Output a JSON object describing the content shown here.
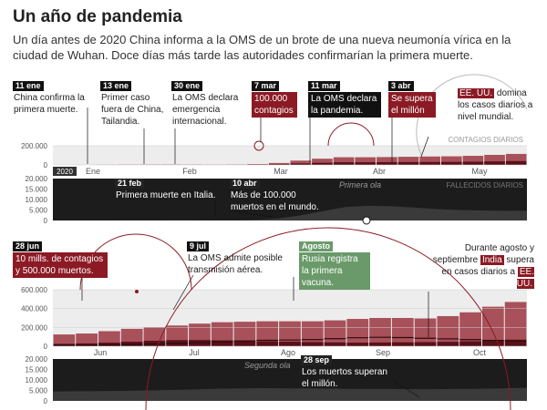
{
  "header": {
    "title": "Un año de pandemia",
    "subtitle": "Un día antes de 2020 China informa a la OMS de un brote de una nueva neumonía vírica en la ciudad de Wuhan. Doce días más tarde las autoridades confirmarían la primera muerte."
  },
  "colors": {
    "cases": "#a8515a",
    "cases_dark": "#5a1018",
    "deaths_bg": "#1c1c1c",
    "deaths_fill": "#3a3a3a",
    "accent": "#8b1a24",
    "green": "#6a9a6a"
  },
  "chart_data": [
    {
      "type": "bar",
      "title": "CONTAGIOS DIARIOS",
      "year_label": "2020",
      "months": [
        "Ene",
        "Feb",
        "Mar",
        "Abr",
        "May"
      ],
      "yticks": [
        "200.000",
        "0"
      ],
      "ylim": [
        0,
        200000
      ],
      "x_weeks": [
        "01-05",
        "01-12",
        "01-19",
        "01-26",
        "02-02",
        "02-09",
        "02-16",
        "02-23",
        "03-01",
        "03-08",
        "03-15",
        "03-22",
        "03-29",
        "04-05",
        "04-12",
        "04-19",
        "04-26",
        "05-03",
        "05-10",
        "05-17",
        "05-24",
        "05-31"
      ],
      "values": [
        0,
        100,
        1200,
        2500,
        3000,
        3500,
        2500,
        1500,
        3000,
        8000,
        20000,
        45000,
        65000,
        80000,
        80000,
        82000,
        85000,
        88000,
        90000,
        95000,
        105000,
        115000
      ]
    },
    {
      "type": "area",
      "title": "FALLECIDOS DIARIOS",
      "band_label": "Primera ola",
      "yticks": [
        "20.000",
        "15.000",
        "10.000",
        "5.000",
        "0"
      ],
      "ylim": [
        0,
        20000
      ],
      "x_weeks": [
        "01-05",
        "01-12",
        "01-19",
        "01-26",
        "02-02",
        "02-09",
        "02-16",
        "02-23",
        "03-01",
        "03-08",
        "03-15",
        "03-22",
        "03-29",
        "04-05",
        "04-12",
        "04-19",
        "04-26",
        "05-03",
        "05-10",
        "05-17",
        "05-24",
        "05-31"
      ],
      "values": [
        0,
        0,
        10,
        30,
        60,
        100,
        120,
        80,
        70,
        300,
        1000,
        2500,
        4500,
        6500,
        7000,
        6800,
        6200,
        5500,
        5000,
        4800,
        4600,
        4700
      ]
    },
    {
      "type": "bar",
      "title": "",
      "months": [
        "Jun",
        "Jul",
        "Ago",
        "Sep",
        "Oct"
      ],
      "yticks": [
        "600.000",
        "400.000",
        "200.000",
        "0"
      ],
      "ylim": [
        0,
        600000
      ],
      "x_weeks": [
        "06-07",
        "06-14",
        "06-21",
        "06-28",
        "07-05",
        "07-12",
        "07-19",
        "07-26",
        "08-02",
        "08-09",
        "08-16",
        "08-23",
        "08-30",
        "09-06",
        "09-13",
        "09-20",
        "09-27",
        "10-04",
        "10-11",
        "10-18",
        "10-25"
      ],
      "values": [
        125000,
        135000,
        160000,
        185000,
        200000,
        220000,
        240000,
        255000,
        260000,
        265000,
        265000,
        265000,
        275000,
        290000,
        300000,
        300000,
        295000,
        320000,
        360000,
        420000,
        470000
      ],
      "series": [
        {
          "name": "",
          "values": [
            125000,
            135000,
            160000,
            185000,
            200000,
            220000,
            240000,
            255000,
            260000,
            265000,
            265000,
            265000,
            275000,
            290000,
            300000,
            300000,
            295000,
            320000,
            360000,
            420000,
            470000
          ]
        },
        {
          "name": "EE. UU.",
          "values": [
            25000,
            30000,
            38000,
            48000,
            58000,
            65000,
            66000,
            62000,
            55000,
            52000,
            48000,
            44000,
            41000,
            38000,
            40000,
            42000,
            44000,
            46000,
            52000,
            60000,
            70000
          ]
        },
        {
          "name": "India",
          "values": [
            10000,
            11000,
            14000,
            19000,
            24000,
            30000,
            38000,
            48000,
            56000,
            63000,
            66000,
            70000,
            80000,
            90000,
            95000,
            92000,
            85000,
            78000,
            70000,
            62000,
            55000
          ]
        }
      ]
    },
    {
      "type": "area",
      "title": "",
      "band_label": "Segunda ola",
      "yticks": [
        "20.000",
        "15.000",
        "10.000",
        "5.000",
        "0"
      ],
      "ylim": [
        0,
        20000
      ],
      "x_weeks": [
        "06-07",
        "06-14",
        "06-21",
        "06-28",
        "07-05",
        "07-12",
        "07-19",
        "07-26",
        "08-02",
        "08-09",
        "08-16",
        "08-23",
        "08-30",
        "09-06",
        "09-13",
        "09-20",
        "09-27",
        "10-04",
        "10-11",
        "10-18",
        "10-25"
      ],
      "values": [
        4500,
        4600,
        4700,
        4800,
        5000,
        5200,
        5500,
        5800,
        6000,
        6100,
        6000,
        5900,
        5800,
        5700,
        5700,
        5600,
        5600,
        5700,
        5800,
        6000,
        6300
      ]
    }
  ],
  "annotations": [
    {
      "date": "11 ene",
      "text": "China confirma la primera muerte."
    },
    {
      "date": "13 ene",
      "text": "Primer caso fuera de China, Tailandia."
    },
    {
      "date": "30 ene",
      "text": "La OMS declara emergencia internacional."
    },
    {
      "date": "7 mar",
      "text": "100.000 contagios"
    },
    {
      "date": "11 mar",
      "text": "La OMS declara la pandemia."
    },
    {
      "date": "3 abr",
      "text": "Se supera el millón"
    },
    {
      "date": "",
      "hl": "EE. UU.",
      "text": " domina los casos diarios a nivel mundial."
    },
    {
      "date": "21 feb",
      "text": "Primera muerte en Italia."
    },
    {
      "date": "10 abr",
      "text": "Más de 100.000 muertos en el mundo."
    },
    {
      "date": "28 jun",
      "text": "10 mills. de contagios y 500.000 muertos."
    },
    {
      "date": "9 jul",
      "text": "La OMS admite posible transmisión aérea."
    },
    {
      "date": "Agosto",
      "text": "Rusia registra la primera vacuna."
    },
    {
      "date": "",
      "pre": "Durante agosto y septiembre ",
      "hl": "India",
      "mid": " supera en casos diarios a ",
      "hl2": "EE. UU.",
      "text": ""
    },
    {
      "date": "28 sep",
      "text": "Los muertos superan el millón."
    }
  ]
}
